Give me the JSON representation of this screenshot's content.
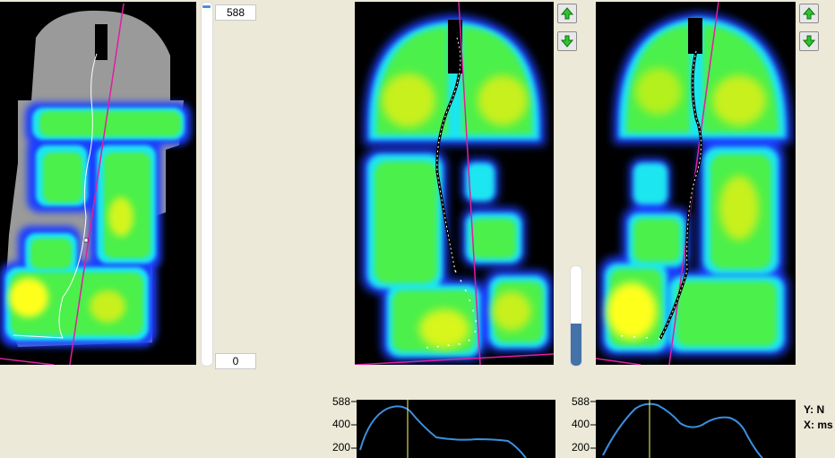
{
  "slider": {
    "max_value": "588",
    "min_value": "0",
    "position_fraction": 0.0
  },
  "progress": {
    "level_fraction": 0.42
  },
  "graph_left": {
    "y_ticks": [
      "588",
      "400",
      "200"
    ]
  },
  "graph_right": {
    "y_ticks": [
      "588",
      "400",
      "200"
    ]
  },
  "legend": {
    "y_label": "Y: N",
    "x_label": "X: ms"
  },
  "buttons": {
    "up_icon": "green-up-arrow-icon",
    "down_icon": "green-down-arrow-icon"
  },
  "colors": {
    "background": "#ece9d8",
    "pressure_high": "#ffff1e",
    "pressure_mid": "#4cf04c",
    "pressure_low": "#1e40ff",
    "axis_line": "#e01ea0",
    "curve": "#3b8fe0",
    "cursor": "#ffff66"
  }
}
